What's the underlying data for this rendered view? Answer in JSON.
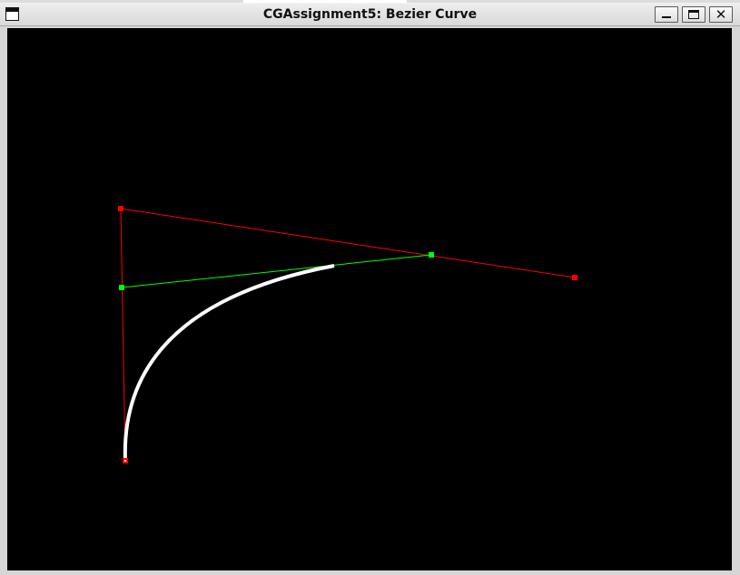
{
  "window": {
    "title": "CGAssignment5: Bezier Curve",
    "controls": {
      "minimize_glyph": "",
      "maximize_glyph": "",
      "close_glyph": "✕"
    }
  },
  "canvas": {
    "background": "#000000",
    "control_points": [
      {
        "color": "#ff0000"
      },
      {
        "color": "#ff0000"
      },
      {
        "color": "#ff0000"
      }
    ],
    "control_polygon_color": "#ff0000",
    "subdivision_points": [
      {
        "color": "#00ff00"
      },
      {
        "color": "#00ff00"
      }
    ],
    "subdivision_line_color": "#00ff00",
    "curve_color": "#ffffff"
  }
}
